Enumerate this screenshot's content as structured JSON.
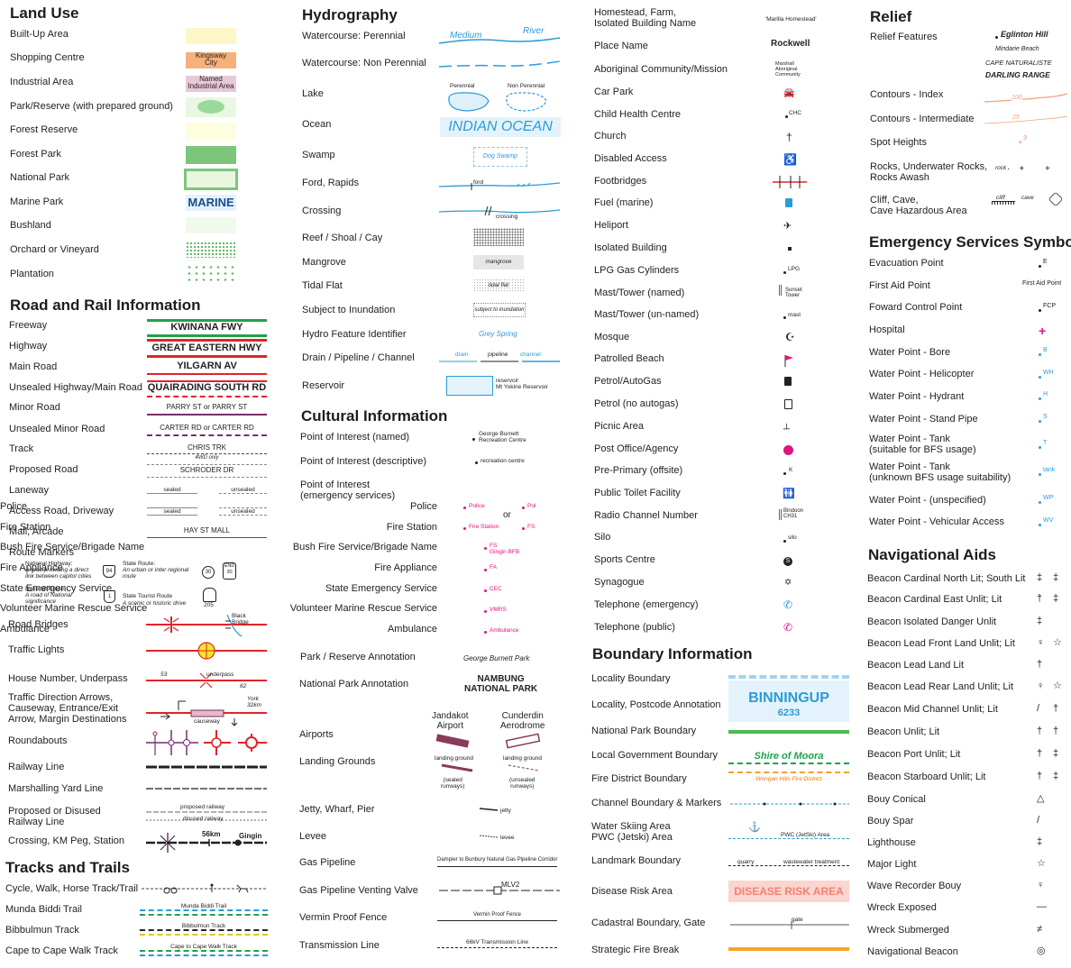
{
  "land_use": {
    "heading": "Land Use",
    "items": [
      {
        "label": "Built-Up Area"
      },
      {
        "label": "Shopping Centre",
        "sym": "Kingsway\nCity"
      },
      {
        "label": "Industrial Area",
        "sym": "Named\nIndustrial Area"
      },
      {
        "label": "Park/Reserve (with prepared ground)"
      },
      {
        "label": "Forest Reserve"
      },
      {
        "label": "Forest Park"
      },
      {
        "label": "National Park"
      },
      {
        "label": "Marine Park",
        "sym": "MARINE"
      },
      {
        "label": "Bushland"
      },
      {
        "label": "Orchard or Vineyard"
      },
      {
        "label": "Plantation"
      }
    ]
  },
  "road_rail": {
    "heading": "Road and Rail Information",
    "items": [
      {
        "label": "Freeway",
        "sym": "KWINANA FWY"
      },
      {
        "label": "Highway",
        "sym": "GREAT EASTERN HWY"
      },
      {
        "label": "Main Road",
        "sym": "YILGARN AV"
      },
      {
        "label": "Unsealed Highway/Main Road",
        "sym": "QUAIRADING SOUTH  RD"
      },
      {
        "label": "Minor Road",
        "sym": "PARRY  ST  or  PARRY  ST"
      },
      {
        "label": "Unsealed Minor Road",
        "sym": "CARTER  RD  or  CARTER  RD"
      },
      {
        "label": "Track",
        "sym": "CHRIS  TRK",
        "sym2": "4WD only"
      },
      {
        "label": "Proposed Road",
        "sym": "SCHRODER  DR"
      },
      {
        "label": "Laneway",
        "sym": "sealed",
        "sym2": "unsealed"
      },
      {
        "label": "Access Road, Driveway",
        "sym": "sealed",
        "sym2": "unsealed"
      },
      {
        "label": "Mall, Arcade",
        "sym": "HAY  ST    MALL"
      },
      {
        "label": "Route Markers"
      }
    ],
    "route_markers": {
      "nat_hwy_title": "National Highway:",
      "nat_hwy_desc": "A road providing a direct\nlink between capitol cities",
      "nat_hwy_num": "94",
      "state_route_title": "State Route:",
      "state_route_desc": "An urban or inter regional\nroute",
      "state_num": "30",
      "state_end": "END",
      "state_end_num": "30",
      "nat_route_title": "National Route:",
      "nat_route_desc": "A road of National\nsignificance",
      "nat_route_num": "1",
      "tourist_title": "State Tourist Route",
      "tourist_desc": "A scenic or historic drive",
      "tourist_num": "205"
    },
    "items2": [
      {
        "label": "Road Bridges",
        "sym": "Black\nBridge"
      },
      {
        "label": "Traffic Lights"
      },
      {
        "label": "House Number, Underpass",
        "sym": "53",
        "sym2": "underpass",
        "sym3": "62"
      },
      {
        "label": "Traffic Direction Arrows,\nCauseway, Entrance/Exit\nArrow, Margin Destinations",
        "sym": "York\n32km",
        "sym2": "causeway"
      },
      {
        "label": "Roundabouts"
      },
      {
        "label": "Railway Line"
      },
      {
        "label": "Marshalling Yard Line"
      },
      {
        "label": "Proposed or Disused\nRailway Line",
        "sym": "proposed    railway",
        "sym2": "disused    railway"
      },
      {
        "label": "Crossing, KM Peg, Station",
        "sym": "56km",
        "sym2": "Gingin"
      }
    ]
  },
  "tracks": {
    "heading": "Tracks and Trails",
    "items": [
      {
        "label": "Cycle, Walk, Horse Track/Trail"
      },
      {
        "label": "Munda Biddi Trail",
        "sym": "Munda Biddi Trail"
      },
      {
        "label": "Bibbulmun Track",
        "sym": "Bibbulmun Track"
      },
      {
        "label": "Cape to Cape Walk Track",
        "sym": "Cape to Cape Walk Track"
      }
    ]
  },
  "hydro": {
    "heading": "Hydrography",
    "items": [
      {
        "label": "Watercourse: Perennial",
        "sym": "Medium",
        "sym2": "River"
      },
      {
        "label": "Watercourse: Non Perennial"
      },
      {
        "label": "Lake",
        "sym": "Perennial",
        "sym2": "Non Perennial"
      },
      {
        "label": "Ocean",
        "sym": "INDIAN  OCEAN"
      },
      {
        "label": "Swamp",
        "sym": "Dog Swamp"
      },
      {
        "label": "Ford, Rapids",
        "sym": "ford"
      },
      {
        "label": "Crossing",
        "sym": "crossing"
      },
      {
        "label": "Reef / Shoal / Cay"
      },
      {
        "label": "Mangrove",
        "sym": "mangrove"
      },
      {
        "label": "Tidal Flat",
        "sym": "tidal flat"
      },
      {
        "label": "Subject to Inundation",
        "sym": "subject to inundation"
      },
      {
        "label": "Hydro Feature Identifier",
        "sym": "Grey Spring"
      },
      {
        "label": "Drain / Pipeline / Channel",
        "sym": "drain",
        "sym2": "pipeline",
        "sym3": "channel"
      },
      {
        "label": "Reservoir",
        "sym": "reservoir\nMt Yokine Reservoir"
      }
    ]
  },
  "cultural": {
    "heading": "Cultural Information",
    "items": [
      {
        "label": "Point of Interest (named)",
        "sym": "George Burnett\nRecreation Centre"
      },
      {
        "label": "Point of Interest (descriptive)",
        "sym": "recreation centre"
      },
      {
        "label": "Point of Interest\n(emergency services)"
      },
      {
        "label": "Police",
        "sym": "Police",
        "sym2": "Pol"
      },
      {
        "label": "Fire Station",
        "sym": "Fire Station",
        "sym2": "FS"
      },
      {
        "label": "Bush Fire Service/Brigade Name",
        "sym": "FS\nGingin BFB"
      },
      {
        "label": "Fire Appliance",
        "sym": "FA"
      },
      {
        "label": "State Emergency Service",
        "sym": "CEC"
      },
      {
        "label": "Volunteer Marine Rescue Service",
        "sym": "VMRS"
      },
      {
        "label": "Ambulance",
        "sym": "Ambulance"
      },
      {
        "label": "Park / Reserve Annotation",
        "sym": "George Burnett Park"
      },
      {
        "label": "National Park Annotation",
        "sym": "NAMBUNG\nNATIONAL PARK"
      },
      {
        "label": "Airports",
        "sym": "Jandakot\nAirport",
        "sym2": "Cunderdin\nAerodrome"
      },
      {
        "label": "Landing Grounds",
        "sym": "landing ground",
        "sym2": "landing ground",
        "sym3": "(sealed\nrunways)",
        "sym4": "(unsealed\nrunways)"
      },
      {
        "label": "Jetty, Wharf, Pier",
        "sym": "jetty"
      },
      {
        "label": "Levee",
        "sym": "levee"
      },
      {
        "label": "Gas Pipeline",
        "sym": "Dampier to Bunbury Natural Gas Pipeline Corridor"
      },
      {
        "label": "Gas Pipeline Venting Valve",
        "sym": "MLV2"
      },
      {
        "label": "Vermin Proof Fence",
        "sym": "Vermin Proof Fence"
      },
      {
        "label": "Transmission Line",
        "sym": "66kV Transmission Line"
      }
    ],
    "or1": "or",
    "or2": "or"
  },
  "places": {
    "items": [
      {
        "label": "Homestead, Farm,\nIsolated Building Name",
        "sym": "'Marilla Homestead'"
      },
      {
        "label": "Place Name",
        "sym": "Rockwell"
      },
      {
        "label": "Aboriginal Community/Mission",
        "sym": "Marshall\nAboriginal\nCommunity"
      },
      {
        "label": "Car Park"
      },
      {
        "label": "Child Health Centre",
        "sym": "CHC"
      },
      {
        "label": "Church"
      },
      {
        "label": "Disabled Access"
      },
      {
        "label": "Footbridges"
      },
      {
        "label": "Fuel (marine)"
      },
      {
        "label": "Heliport"
      },
      {
        "label": "Isolated Building"
      },
      {
        "label": "LPG Gas Cylinders",
        "sym": "LPG"
      },
      {
        "label": "Mast/Tower (named)",
        "sym": "Sunset\nTower"
      },
      {
        "label": "Mast/Tower (un-named)",
        "sym": "mast"
      },
      {
        "label": "Mosque"
      },
      {
        "label": "Patrolled Beach"
      },
      {
        "label": "Petrol/AutoGas"
      },
      {
        "label": "Petrol (no autogas)"
      },
      {
        "label": "Picnic Area"
      },
      {
        "label": "Post Office/Agency"
      },
      {
        "label": "Pre-Primary (offsite)",
        "sym": "K"
      },
      {
        "label": "Public Toilet Facility"
      },
      {
        "label": "Radio Channel Number",
        "sym": "Bindoon\nCH31"
      },
      {
        "label": "Silo",
        "sym": "silo"
      },
      {
        "label": "Sports Centre"
      },
      {
        "label": "Synagogue"
      },
      {
        "label": "Telephone (emergency)"
      },
      {
        "label": "Telephone (public)"
      }
    ]
  },
  "boundary": {
    "heading": "Boundary Information",
    "items": [
      {
        "label": "Locality Boundary"
      },
      {
        "label": "Locality, Postcode Annotation",
        "sym": "BINNINGUP",
        "sym2": "6233"
      },
      {
        "label": "National Park Boundary"
      },
      {
        "label": "Local Government Boundary",
        "sym": "Shire      of      Moora"
      },
      {
        "label": "Fire District Boundary",
        "sym": "Wongan Hills Fire District"
      },
      {
        "label": "Channel Boundary & Markers"
      },
      {
        "label": "Water Skiing Area\nPWC (Jetski) Area",
        "sym": "PWC (JetSki) Area"
      },
      {
        "label": "Landmark Boundary",
        "sym": "quarry",
        "sym2": "wastewater treatment"
      },
      {
        "label": "Disease Risk Area",
        "sym": "DISEASE RISK AREA"
      },
      {
        "label": "Cadastral Boundary, Gate",
        "sym": "gate"
      },
      {
        "label": "Strategic Fire Break"
      }
    ]
  },
  "relief": {
    "heading": "Relief",
    "items": [
      {
        "label": "Relief Features",
        "sym": "Eglinton Hill",
        "sym2": "Mindarie Beach",
        "sym3": "CAPE NATURALISTE",
        "sym4": "DARLING RANGE"
      },
      {
        "label": "Contours - Index",
        "sym": "100"
      },
      {
        "label": "Contours - Intermediate",
        "sym": "25"
      },
      {
        "label": "Spot Heights",
        "sym": "9"
      },
      {
        "label": "Rocks, Underwater Rocks,\nRocks Awash",
        "sym": "rock"
      },
      {
        "label": "Cliff, Cave,\nCave Hazardous Area",
        "sym": "cliff",
        "sym2": "cave"
      }
    ]
  },
  "emergency": {
    "heading": "Emergency Services Symbols",
    "items": [
      {
        "label": "Evacuation Point",
        "sym": "E"
      },
      {
        "label": "First Aid Point",
        "sym": "First Aid Point"
      },
      {
        "label": "Foward Control Point",
        "sym": "FCP"
      },
      {
        "label": "Hospital"
      },
      {
        "label": "Water Point - Bore",
        "sym": "B"
      },
      {
        "label": "Water Point - Helicopter",
        "sym": "WH"
      },
      {
        "label": "Water Point - Hydrant",
        "sym": "H"
      },
      {
        "label": "Water Point - Stand Pipe",
        "sym": "S"
      },
      {
        "label": "Water Point - Tank\n(suitable for BFS usage)",
        "sym": "T"
      },
      {
        "label": "Water Point - Tank\n(unknown BFS usage suitability)",
        "sym": "tank"
      },
      {
        "label": "Water Point - (unspecified)",
        "sym": "WP"
      },
      {
        "label": "Water Point - Vehicular Access",
        "sym": "WV"
      }
    ]
  },
  "nav": {
    "heading": "Navigational Aids",
    "items": [
      {
        "label": "Beacon Cardinal North Lit; South Lit"
      },
      {
        "label": "Beacon Cardinal East Unlit; Lit"
      },
      {
        "label": "Beacon Isolated Danger Unlit"
      },
      {
        "label": "Beacon Lead Front Land Unlit; Lit"
      },
      {
        "label": "Beacon Lead Land Lit"
      },
      {
        "label": "Beacon Lead Rear Land Unlit; Lit"
      },
      {
        "label": "Beacon Mid Channel Unlit; Lit"
      },
      {
        "label": "Beacon Unlit; Lit"
      },
      {
        "label": "Beacon Port Unlit; Lit"
      },
      {
        "label": "Beacon Starboard Unlit; Lit"
      },
      {
        "label": "Bouy Conical"
      },
      {
        "label": "Bouy Spar"
      },
      {
        "label": "Lighthouse"
      },
      {
        "label": "Major Light"
      },
      {
        "label": "Wave Recorder Bouy"
      },
      {
        "label": "Wreck Exposed"
      },
      {
        "label": "Wreck Submerged"
      },
      {
        "label": "Navigational Beacon"
      }
    ]
  },
  "colors": {
    "water": "#2b9bd8",
    "road_red": "#e0242a",
    "forest_green": "#7cc67c",
    "emergency_magenta": "#e0147f",
    "purple_track": "#7a2d6a"
  }
}
